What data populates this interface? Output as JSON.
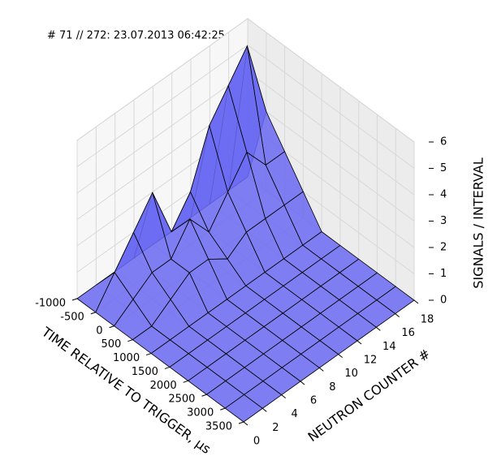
{
  "chart_data": {
    "type": "surface3d",
    "title": "# 71 // 272: 23.07.2013 06:42:25",
    "xlabel": "TIME RELATIVE TO TRIGGER, μs",
    "ylabel": "NEUTRON COUNTER #",
    "zlabel": "SIGNALS / INTERVAL",
    "x": [
      -1000,
      -500,
      0,
      500,
      1000,
      1500,
      2000,
      2500,
      3000,
      3500
    ],
    "y": [
      0,
      2,
      4,
      6,
      8,
      10,
      12,
      14,
      16,
      18
    ],
    "z": [
      [
        0,
        0,
        0,
        0,
        0,
        0,
        0,
        0,
        0,
        0
      ],
      [
        0,
        1,
        0.5,
        0,
        0,
        0,
        0,
        0,
        0,
        0
      ],
      [
        0,
        2,
        1,
        0.5,
        0,
        0,
        0,
        0,
        0,
        0
      ],
      [
        0,
        3,
        1,
        1,
        0,
        0,
        0,
        0,
        0,
        0
      ],
      [
        0,
        1,
        2,
        1,
        0,
        0,
        0,
        0,
        0,
        0
      ],
      [
        0,
        2,
        1,
        0.5,
        0,
        0,
        0,
        0,
        0,
        0
      ],
      [
        0,
        4,
        2,
        1,
        0,
        0,
        0,
        0,
        0,
        0
      ],
      [
        0,
        5,
        3,
        1,
        0,
        0,
        0,
        0,
        0,
        0
      ],
      [
        0,
        6,
        2,
        1,
        0,
        0,
        0,
        0,
        0,
        0
      ],
      [
        0,
        3,
        2,
        1,
        0,
        0,
        0,
        0,
        0,
        0
      ]
    ],
    "color": "#6a6af2",
    "xlim": [
      -1000,
      3500
    ],
    "ylim": [
      0,
      18
    ],
    "zlim": [
      0,
      6
    ],
    "xticks": [
      -1000,
      -500,
      0,
      500,
      1000,
      1500,
      2000,
      2500,
      3000,
      3500
    ],
    "yticks": [
      0,
      2,
      4,
      6,
      8,
      10,
      12,
      14,
      16,
      18
    ],
    "zticks": [
      0,
      1,
      2,
      3,
      4,
      5,
      6
    ],
    "grid": true
  }
}
